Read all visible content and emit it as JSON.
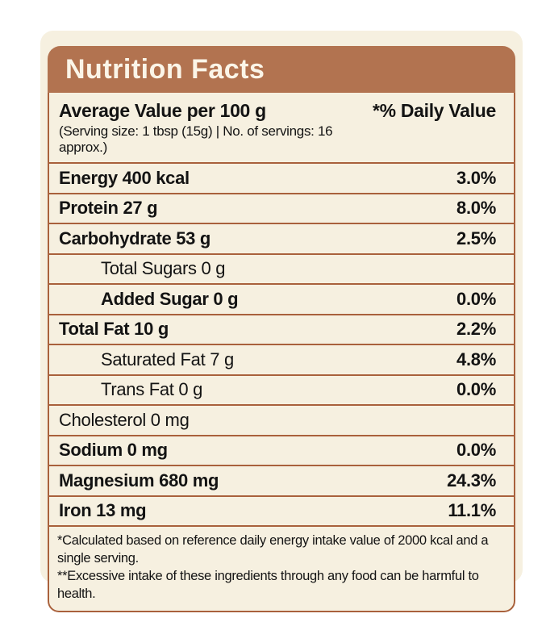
{
  "header": {
    "title": "Nutrition Facts"
  },
  "table": {
    "column_header_left": "Average Value per 100 g",
    "serving_note": "(Serving size: 1 tbsp (15g) | No. of servings: 16 approx.)",
    "column_header_right": "*% Daily Value",
    "rows": [
      {
        "label": "Energy 400 kcal",
        "value": "3.0%",
        "bold": true,
        "indent": false
      },
      {
        "label": "Protein 27 g",
        "value": "8.0%",
        "bold": true,
        "indent": false
      },
      {
        "label": "Carbohydrate 53 g",
        "value": "2.5%",
        "bold": true,
        "indent": false
      },
      {
        "label": "Total Sugars 0 g",
        "value": "",
        "bold": false,
        "indent": true
      },
      {
        "label": "Added Sugar 0 g",
        "value": "0.0%",
        "bold": true,
        "indent": true
      },
      {
        "label": "Total Fat 10 g",
        "value": "2.2%",
        "bold": true,
        "indent": false
      },
      {
        "label": "Saturated Fat 7 g",
        "value": "4.8%",
        "bold": false,
        "indent": true
      },
      {
        "label": "Trans Fat 0 g",
        "value": "0.0%",
        "bold": false,
        "indent": true
      },
      {
        "label": "Cholesterol 0 mg",
        "value": "",
        "bold": false,
        "indent": false
      },
      {
        "label": "Sodium 0 mg",
        "value": "0.0%",
        "bold": true,
        "indent": false
      },
      {
        "label": "Magnesium 680 mg",
        "value": "24.3%",
        "bold": true,
        "indent": false
      },
      {
        "label": "Iron 13 mg",
        "value": "11.1%",
        "bold": true,
        "indent": false
      }
    ],
    "footnotes": [
      "*Calculated based on reference daily energy intake value of 2000 kcal and a single serving.",
      "**Excessive intake of these ingredients through any food can be harmful to health."
    ]
  },
  "colors": {
    "header_bg": "#b27350",
    "border": "#a9613c",
    "card_bg": "#f6f0e0",
    "text": "#131313",
    "title_text": "#fbf5e8"
  }
}
